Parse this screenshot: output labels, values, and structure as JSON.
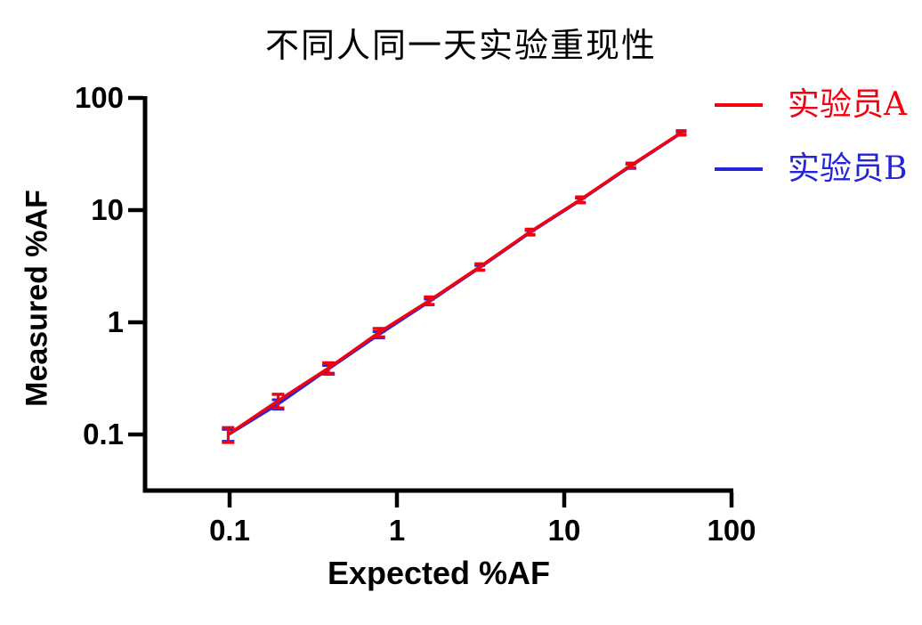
{
  "chart_data": {
    "type": "line",
    "title": "不同人同一天实验重现性",
    "xlabel": "Expected %AF",
    "ylabel": "Measured %AF",
    "x_scale": "log",
    "y_scale": "log",
    "x_range": [
      0.03,
      100
    ],
    "y_range": [
      0.032,
      100
    ],
    "grid": false,
    "legend_position": "top-right",
    "axis_color": "#000000",
    "x_ticks": [
      {
        "label": "0.1",
        "value": 0.1
      },
      {
        "label": "1",
        "value": 1
      },
      {
        "label": "10",
        "value": 10
      },
      {
        "label": "100",
        "value": 100
      }
    ],
    "y_ticks": [
      {
        "label": "100",
        "value": 100
      },
      {
        "label": "10",
        "value": 10
      },
      {
        "label": "1",
        "value": 1
      },
      {
        "label": "0.1",
        "value": 0.1
      }
    ],
    "series": [
      {
        "name": "实验员A",
        "color": "#f30011",
        "marker": "line-with-error-bars",
        "x": [
          0.098,
          0.195,
          0.39,
          0.78,
          1.56,
          3.13,
          6.25,
          12.5,
          25,
          50
        ],
        "y": [
          0.1,
          0.2,
          0.39,
          0.81,
          1.56,
          3.12,
          6.4,
          12.4,
          25.0,
          49.0
        ],
        "yerr": [
          0.015,
          0.028,
          0.045,
          0.07,
          0.12,
          0.2,
          0.35,
          0.7,
          1.2,
          2.0
        ]
      },
      {
        "name": "实验员B",
        "color": "#2424d9",
        "marker": "line-with-error-bars",
        "x": [
          0.098,
          0.195,
          0.39,
          0.78,
          1.56,
          3.13,
          6.25,
          12.5,
          25,
          50
        ],
        "y": [
          0.099,
          0.186,
          0.382,
          0.775,
          1.52,
          3.06,
          6.28,
          12.2,
          24.6,
          48.3
        ],
        "yerr": [
          0.012,
          0.018,
          0.03,
          0.05,
          0.09,
          0.15,
          0.3,
          0.6,
          1.1,
          1.8
        ]
      }
    ]
  }
}
